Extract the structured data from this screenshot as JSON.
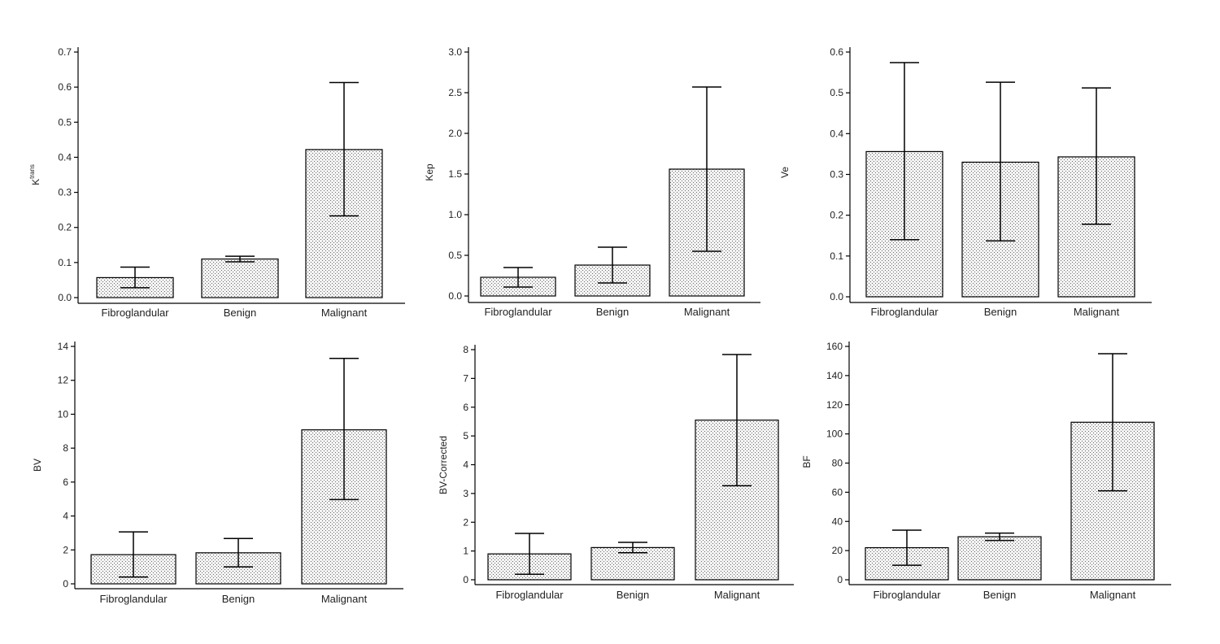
{
  "style": {
    "bar_fill": "#f4f4f4",
    "dot_color": "#6a6a6a",
    "line_color": "#000000",
    "text_color": "#222222"
  },
  "chart_data": [
    {
      "type": "bar",
      "ylabel": "K",
      "ylabel_sup": "trans",
      "categories": [
        "Fibroglandular",
        "Benign",
        "Malignant"
      ],
      "values": [
        0.057,
        0.11,
        0.422
      ],
      "error_low": [
        0.028,
        0.102,
        0.233
      ],
      "error_high": [
        0.087,
        0.118,
        0.613
      ],
      "ylim": [
        0,
        0.7
      ],
      "yticks": [
        0,
        0.1,
        0.2,
        0.3,
        0.4,
        0.5,
        0.6,
        0.7
      ],
      "ytick_labels": [
        "0.0",
        "0.1",
        "0.2",
        "0.3",
        "0.4",
        "0.5",
        "0.6",
        "0.7"
      ]
    },
    {
      "type": "bar",
      "ylabel": "Kep",
      "categories": [
        "Fibroglandular",
        "Benign",
        "Malignant"
      ],
      "values": [
        0.23,
        0.38,
        1.56
      ],
      "error_low": [
        0.11,
        0.16,
        0.55
      ],
      "error_high": [
        0.35,
        0.6,
        2.57
      ],
      "ylim": [
        0,
        3.0
      ],
      "yticks": [
        0,
        0.5,
        1.0,
        1.5,
        2.0,
        2.5,
        3.0
      ],
      "ytick_labels": [
        "0.0",
        "0.5",
        "1.0",
        "1.5",
        "2.0",
        "2.5",
        "3.0"
      ]
    },
    {
      "type": "bar",
      "ylabel": "Ve",
      "categories": [
        "Fibroglandular",
        "Benign",
        "Malignant"
      ],
      "values": [
        0.356,
        0.33,
        0.343
      ],
      "error_low": [
        0.14,
        0.137,
        0.178
      ],
      "error_high": [
        0.574,
        0.526,
        0.512
      ],
      "ylim": [
        0,
        0.6
      ],
      "yticks": [
        0,
        0.1,
        0.2,
        0.3,
        0.4,
        0.5,
        0.6
      ],
      "ytick_labels": [
        "0.0",
        "0.1",
        "0.2",
        "0.3",
        "0.4",
        "0.5",
        "0.6"
      ]
    },
    {
      "type": "bar",
      "ylabel": "BV",
      "categories": [
        "Fibroglandular",
        "Benign",
        "Malignant"
      ],
      "values": [
        1.72,
        1.83,
        9.08
      ],
      "error_low": [
        0.4,
        1.0,
        4.97
      ],
      "error_high": [
        3.06,
        2.67,
        13.29
      ],
      "ylim": [
        0,
        14
      ],
      "yticks": [
        0,
        2,
        4,
        6,
        8,
        10,
        12,
        14
      ],
      "ytick_labels": [
        "0",
        "2",
        "4",
        "6",
        "8",
        "10",
        "12",
        "14"
      ]
    },
    {
      "type": "bar",
      "ylabel": "BV-Corrected",
      "categories": [
        "Fibroglandular",
        "Benign",
        "Malignant"
      ],
      "values": [
        0.9,
        1.12,
        5.55
      ],
      "error_low": [
        0.19,
        0.94,
        3.27
      ],
      "error_high": [
        1.61,
        1.3,
        7.83
      ],
      "ylim": [
        0,
        8
      ],
      "yticks": [
        0,
        1,
        2,
        3,
        4,
        5,
        6,
        7,
        8
      ],
      "ytick_labels": [
        "0",
        "1",
        "2",
        "3",
        "4",
        "5",
        "6",
        "7",
        "8"
      ]
    },
    {
      "type": "bar",
      "ylabel": "BF",
      "categories": [
        "Fibroglandular",
        "Benign",
        "Malignant"
      ],
      "values": [
        22,
        29.5,
        108
      ],
      "error_low": [
        10,
        27,
        61
      ],
      "error_high": [
        34,
        32,
        155
      ],
      "ylim": [
        0,
        160
      ],
      "yticks": [
        0,
        20,
        40,
        60,
        80,
        100,
        120,
        140,
        160
      ],
      "ytick_labels": [
        "0",
        "20",
        "40",
        "60",
        "80",
        "100",
        "120",
        "140",
        "160"
      ]
    }
  ]
}
